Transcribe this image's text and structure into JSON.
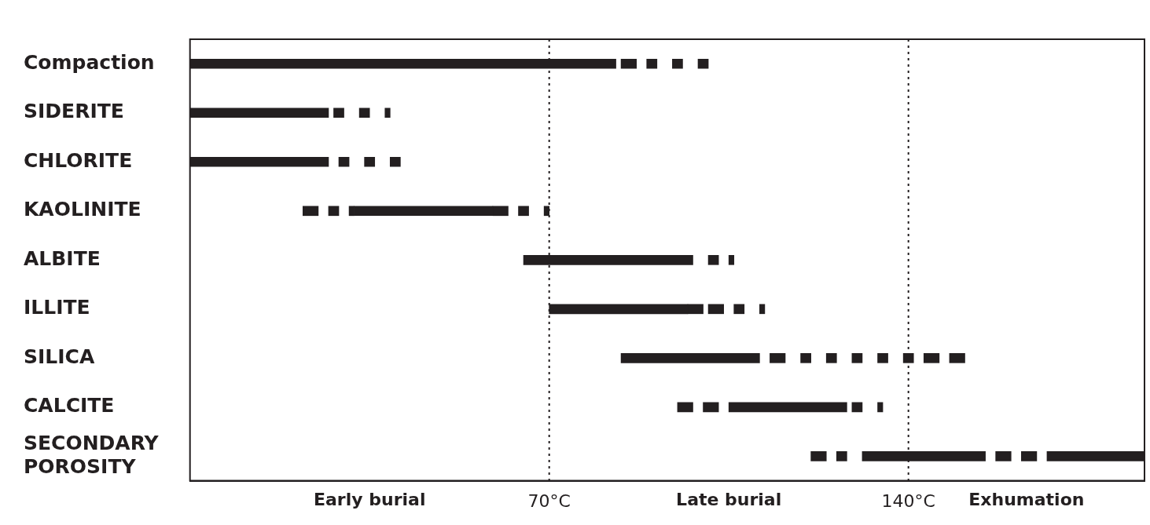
{
  "chart_data": {
    "type": "bar",
    "orientation": "horizontal",
    "categories": [
      "Compaction",
      "SIDERITE",
      "CHLORITE",
      "KAOLINITE",
      "ALBITE",
      "ILLITE",
      "SILICA",
      "CALCITE",
      "SECONDARY POROSITY"
    ],
    "series": [
      {
        "color": "#231f20",
        "base": [
          0,
          0,
          0,
          32,
          65,
          70,
          84,
          105,
          131
        ],
        "values": [
          83,
          27,
          27,
          27,
          33,
          27,
          27,
          23,
          24
        ]
      },
      {
        "color": "#231f20",
        "base": [
          null,
          null,
          null,
          null,
          null,
          null,
          null,
          null,
          167
        ],
        "values": [
          null,
          null,
          null,
          null,
          null,
          null,
          null,
          null,
          19
        ]
      },
      {
        "color": "#231f20",
        "base": [
          84,
          28,
          29,
          22,
          101,
          97,
          113,
          95,
          121
        ],
        "values": [
          3,
          2,
          2,
          3,
          2,
          3,
          3,
          3,
          3
        ]
      },
      {
        "color": "#231f20",
        "base": [
          89,
          33,
          34,
          27,
          105,
          101,
          119,
          100,
          126
        ],
        "values": [
          2,
          2,
          2,
          2,
          1,
          3,
          2,
          3,
          2
        ]
      },
      {
        "color": "#231f20",
        "base": [
          94,
          38,
          39,
          31,
          null,
          106,
          124,
          129,
          157
        ],
        "values": [
          2,
          1,
          2,
          1,
          null,
          2,
          2,
          2,
          3
        ]
      },
      {
        "color": "#231f20",
        "base": [
          99,
          null,
          null,
          59,
          null,
          111,
          129,
          134,
          162
        ],
        "values": [
          2,
          null,
          null,
          3,
          null,
          1,
          2,
          1,
          3
        ]
      },
      {
        "color": "#231f20",
        "base": [
          null,
          null,
          null,
          64,
          null,
          null,
          134,
          null,
          null
        ],
        "values": [
          null,
          null,
          null,
          2,
          null,
          null,
          2,
          null,
          null
        ]
      },
      {
        "color": "#231f20",
        "base": [
          null,
          null,
          null,
          69,
          null,
          null,
          139,
          null,
          null
        ],
        "values": [
          null,
          null,
          null,
          1,
          null,
          null,
          2,
          null,
          null
        ]
      },
      {
        "color": "#231f20",
        "base": [
          null,
          null,
          null,
          null,
          null,
          null,
          143,
          null,
          null
        ],
        "values": [
          null,
          null,
          null,
          null,
          null,
          null,
          3,
          null,
          null
        ]
      },
      {
        "color": "#231f20",
        "base": [
          null,
          null,
          null,
          null,
          null,
          null,
          148,
          null,
          null
        ],
        "values": [
          null,
          null,
          null,
          null,
          null,
          null,
          3,
          null,
          null
        ]
      }
    ],
    "xlim": [
      0,
      186
    ],
    "xticks": [
      {
        "value": 70,
        "label": "70°C"
      },
      {
        "value": 140,
        "label": "140°C"
      }
    ],
    "ref_lines": [
      {
        "axis": "x",
        "value": 70,
        "color": "#231f20",
        "line_style": "dotted"
      },
      {
        "axis": "x",
        "value": 140,
        "color": "#231f20",
        "line_style": "dotted"
      }
    ],
    "annotations": [
      "Early burial",
      "Late burial",
      "Exhumation"
    ]
  }
}
